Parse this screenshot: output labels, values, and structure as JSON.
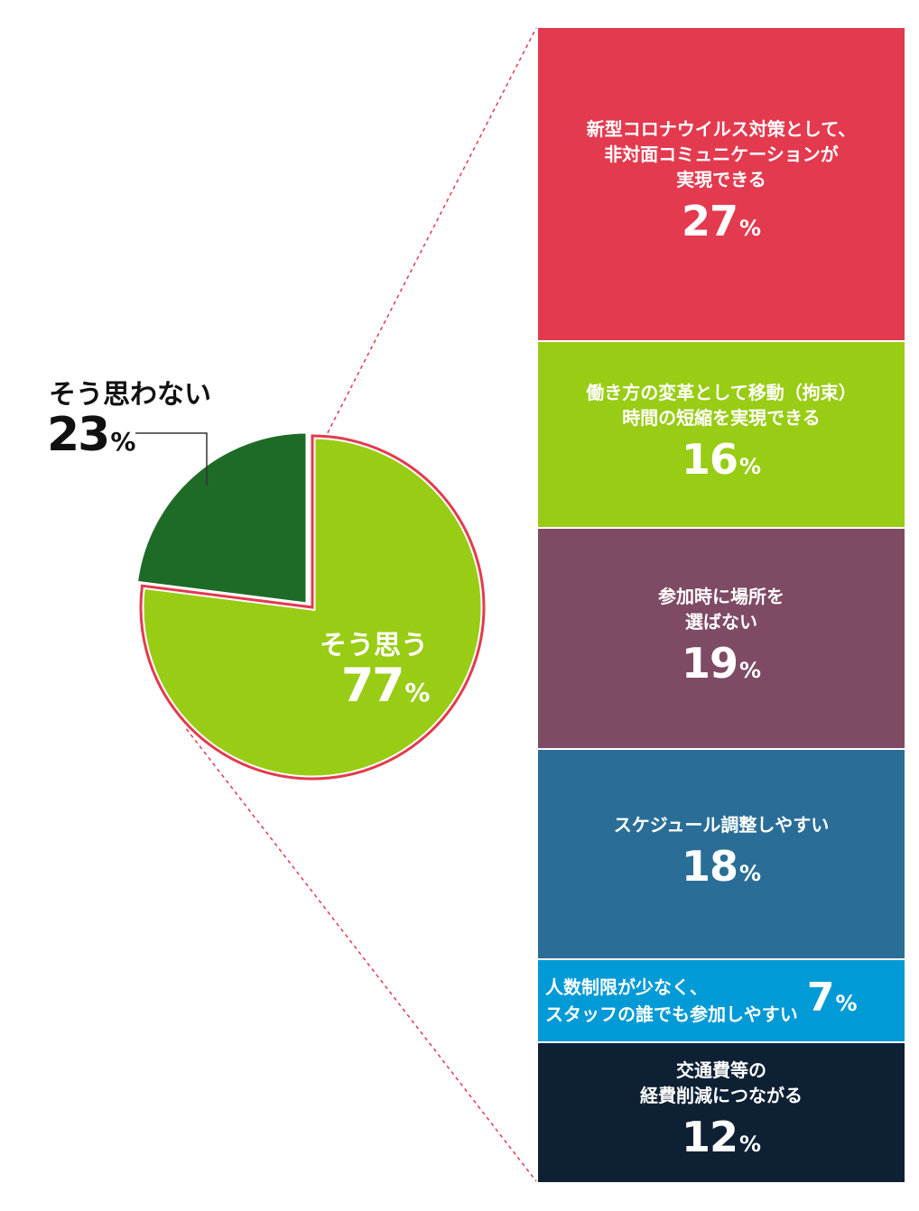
{
  "chart_data": [
    {
      "type": "pie",
      "title": "",
      "slices": [
        {
          "label": "そう思う",
          "value": 77,
          "display": "77",
          "unit": "%",
          "color": "#99CC15",
          "highlighted": true
        },
        {
          "label": "そう思わない",
          "value": 23,
          "display": "23",
          "unit": "%",
          "color": "#1E6B27",
          "highlighted": false
        }
      ],
      "highlight_color": "#E33A4F"
    },
    {
      "type": "bar",
      "orientation": "stacked-vertical",
      "note": "breakdown of そう思う",
      "items": [
        {
          "label": "新型コロナウイルス対策として、\n非対面コミュニケーションが\n実現できる",
          "value": 27,
          "display": "27",
          "unit": "%",
          "color": "#E33A4F"
        },
        {
          "label": "働き方の変革として移動（拘束）\n時間の短縮を実現できる",
          "value": 16,
          "display": "16",
          "unit": "%",
          "color": "#99CC15"
        },
        {
          "label": "参加時に場所を\n選ばない",
          "value": 19,
          "display": "19",
          "unit": "%",
          "color": "#7E4A64"
        },
        {
          "label": "スケジュール調整しやすい",
          "value": 18,
          "display": "18",
          "unit": "%",
          "color": "#2A6E97"
        },
        {
          "label": "人数制限が少なく、\nスタッフの誰でも参加しやすい",
          "value": 7,
          "display": "7",
          "unit": "%",
          "color": "#009AD6"
        },
        {
          "label": "交通費等の\n経費削減につながる",
          "value": 12,
          "display": "12",
          "unit": "%",
          "color": "#0E2034"
        }
      ]
    }
  ],
  "colors": {
    "leader_line": "#333333",
    "dashed_connector": "#E33A4F"
  }
}
